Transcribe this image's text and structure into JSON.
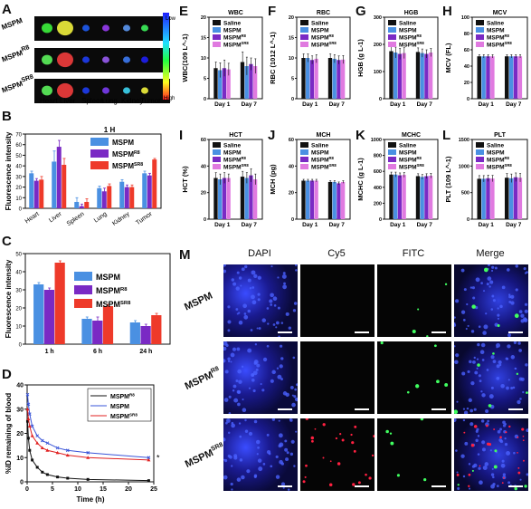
{
  "panel_labels": [
    "A",
    "B",
    "C",
    "D",
    "E",
    "F",
    "G",
    "H",
    "I",
    "J",
    "K",
    "L",
    "M"
  ],
  "imaging": {
    "rows": [
      "MSPM",
      "MSPM^R8",
      "MSPM^SR8"
    ],
    "organs": [
      "Heart",
      "Liver",
      "Spleen",
      "Lung",
      "Kidney",
      "Tumor"
    ],
    "scale_low": "Low",
    "scale_high": "High"
  },
  "chart_data": [
    {
      "id": "B",
      "type": "bar",
      "title": "1 H",
      "ylabel": "Fluorescence intensity",
      "categories": [
        "Heart",
        "Liver",
        "Spleen",
        "Lung",
        "Kidney",
        "Tumor"
      ],
      "ylim": [
        0,
        70
      ],
      "series": [
        {
          "name": "MSPM",
          "color": "#4a90e2",
          "values": [
            33,
            44,
            6,
            19,
            25,
            33
          ],
          "err": [
            2,
            10,
            4,
            2,
            2,
            2
          ]
        },
        {
          "name": "MSPM^R8",
          "color": "#7a2ac4",
          "values": [
            26,
            58,
            2,
            16,
            20,
            31
          ],
          "err": [
            2,
            6,
            2,
            3,
            2,
            2
          ]
        },
        {
          "name": "MSPM^SR8",
          "color": "#ee3a2a",
          "values": [
            27,
            41,
            6,
            21,
            20,
            46
          ],
          "err": [
            3,
            6,
            3,
            2,
            2,
            1
          ]
        }
      ]
    },
    {
      "id": "C",
      "type": "bar",
      "ylabel": "Fluorescence intensity",
      "categories": [
        "1 h",
        "6 h",
        "24 h"
      ],
      "ylim": [
        0,
        50
      ],
      "series": [
        {
          "name": "MSPM",
          "color": "#4a90e2",
          "values": [
            33,
            14,
            12
          ],
          "err": [
            1,
            1,
            1
          ]
        },
        {
          "name": "MSPM^R8",
          "color": "#7a2ac4",
          "values": [
            30,
            13,
            10
          ],
          "err": [
            1,
            2,
            1
          ]
        },
        {
          "name": "MSPM^SR8",
          "color": "#ee3a2a",
          "values": [
            45,
            21,
            16
          ],
          "err": [
            1,
            1,
            1
          ]
        }
      ]
    },
    {
      "id": "D",
      "type": "line",
      "xlabel": "Time (h)",
      "ylabel": "%ID remaining of blood",
      "xlim": [
        0,
        25
      ],
      "ylim": [
        0,
        40
      ],
      "xticks": [
        0,
        5,
        10,
        15,
        20,
        25
      ],
      "yticks": [
        0,
        10,
        20,
        30,
        40
      ],
      "annotation": "*",
      "series": [
        {
          "name": "MSPM^R8",
          "color": "#111111",
          "marker": "square",
          "x": [
            0.083,
            0.25,
            0.5,
            1,
            2,
            3,
            4,
            6,
            8,
            12,
            24
          ],
          "y": [
            25,
            18,
            13,
            9,
            6,
            4,
            3,
            2,
            1.5,
            1,
            0.5
          ]
        },
        {
          "name": "MSPM",
          "color": "#3a55d8",
          "marker": "x",
          "x": [
            0.083,
            0.25,
            0.5,
            1,
            2,
            3,
            4,
            6,
            8,
            12,
            24
          ],
          "y": [
            36,
            32,
            28,
            23,
            19,
            17,
            16,
            14,
            13,
            12,
            10
          ]
        },
        {
          "name": "MSPM^SR8",
          "color": "#e02020",
          "marker": "triangle",
          "x": [
            0.083,
            0.25,
            0.5,
            1,
            2,
            3,
            4,
            6,
            8,
            12,
            24
          ],
          "y": [
            30,
            26,
            23,
            19,
            16,
            14,
            13,
            12,
            11,
            10,
            9
          ]
        }
      ]
    },
    {
      "id": "hema_legend",
      "entries": [
        {
          "name": "Saline",
          "color": "#111111"
        },
        {
          "name": "MSPM",
          "color": "#4a90e2"
        },
        {
          "name": "MSPM^R8",
          "color": "#7a2ac4"
        },
        {
          "name": "MSPM^SR8",
          "color": "#e07ae0"
        }
      ],
      "categories": [
        "Day 1",
        "Day 7"
      ]
    },
    {
      "id": "E",
      "type": "bar",
      "title": "WBC",
      "ylabel": "WBC(10^9 L^-1)",
      "ylim": [
        0,
        20
      ],
      "yticks": [
        0,
        5,
        10,
        15,
        20
      ],
      "values": [
        [
          7.5,
          7,
          7.5,
          7.2
        ],
        [
          9,
          8,
          8.5,
          8
        ]
      ],
      "err": [
        [
          1.5,
          1.8,
          2,
          1.5
        ],
        [
          2.5,
          2.2,
          1.5,
          1.8
        ]
      ]
    },
    {
      "id": "F",
      "type": "bar",
      "title": "RBC",
      "ylabel": "RBC (10^12 L^-1)",
      "ylim": [
        0,
        20
      ],
      "yticks": [
        0,
        5,
        10,
        15,
        20
      ],
      "values": [
        [
          10,
          10,
          9.5,
          9.8
        ],
        [
          10,
          9.8,
          9.5,
          9.6
        ]
      ],
      "err": [
        [
          1,
          1,
          1,
          1
        ],
        [
          1,
          1,
          1,
          1
        ]
      ]
    },
    {
      "id": "G",
      "type": "bar",
      "title": "HGB",
      "ylabel": "HGB (g L^-1)",
      "ylim": [
        0,
        300
      ],
      "yticks": [
        0,
        100,
        200,
        300
      ],
      "values": [
        [
          175,
          170,
          165,
          168
        ],
        [
          172,
          168,
          165,
          170
        ]
      ],
      "err": [
        [
          25,
          20,
          20,
          20
        ],
        [
          15,
          15,
          15,
          15
        ]
      ]
    },
    {
      "id": "H",
      "type": "bar",
      "title": "MCV",
      "ylabel": "MCV (FL)",
      "ylim": [
        0,
        100
      ],
      "yticks": [
        0,
        20,
        40,
        60,
        80,
        100
      ],
      "values": [
        [
          52,
          52,
          52,
          52
        ],
        [
          52,
          52,
          52,
          52
        ]
      ],
      "err": [
        [
          2,
          2,
          2,
          2
        ],
        [
          2,
          2,
          2,
          2
        ]
      ]
    },
    {
      "id": "I",
      "type": "bar",
      "title": "HCT",
      "ylabel": "HCT (%)",
      "ylim": [
        0,
        60
      ],
      "yticks": [
        0,
        20,
        40,
        60
      ],
      "values": [
        [
          31,
          30,
          31,
          31
        ],
        [
          32,
          31,
          33,
          30
        ]
      ],
      "err": [
        [
          4,
          4,
          4,
          3
        ],
        [
          4,
          4,
          5,
          4
        ]
      ]
    },
    {
      "id": "J",
      "type": "bar",
      "title": "MCH",
      "ylabel": "MCH (pg)",
      "ylim": [
        0,
        60
      ],
      "yticks": [
        0,
        20,
        40,
        60
      ],
      "values": [
        [
          29,
          29,
          29,
          29
        ],
        [
          28,
          28,
          27,
          28
        ]
      ],
      "err": [
        [
          1,
          1,
          1,
          1
        ],
        [
          1,
          1,
          1,
          1
        ]
      ]
    },
    {
      "id": "K",
      "type": "bar",
      "title": "MCHC",
      "ylabel": "MCHC (g L^-1)",
      "ylim": [
        0,
        1000
      ],
      "yticks": [
        0,
        200,
        400,
        600,
        800,
        1000
      ],
      "values": [
        [
          560,
          560,
          550,
          555
        ],
        [
          540,
          530,
          540,
          545
        ]
      ],
      "err": [
        [
          30,
          30,
          30,
          30
        ],
        [
          30,
          30,
          30,
          30
        ]
      ]
    },
    {
      "id": "L",
      "type": "bar",
      "title": "PLT",
      "ylabel": "PLT (10^9 L^-1)",
      "ylim": [
        0,
        1500
      ],
      "yticks": [
        0,
        500,
        1000,
        1500
      ],
      "values": [
        [
          760,
          760,
          770,
          765
        ],
        [
          780,
          770,
          790,
          780
        ]
      ],
      "err": [
        [
          60,
          60,
          60,
          60
        ],
        [
          80,
          80,
          80,
          80
        ]
      ]
    }
  ],
  "microscopy": {
    "columns": [
      "DAPI",
      "Cy5",
      "FITC",
      "Merge"
    ],
    "rows": [
      "MSPM",
      "MSPM^R8",
      "MSPM^SR8"
    ]
  }
}
